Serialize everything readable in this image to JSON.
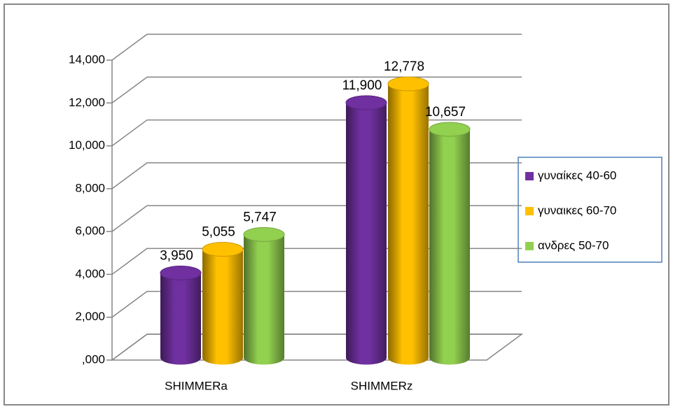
{
  "chart_data": {
    "type": "bar3d",
    "categories": [
      "SHIMMERa",
      "SHIMMERz"
    ],
    "series": [
      {
        "name": "γυναίκες 40-60",
        "color": "#7030a0",
        "values": [
          3.95,
          11.9
        ],
        "value_labels": [
          "3,950",
          "11,900"
        ]
      },
      {
        "name": "γυναικες 60-70",
        "color": "#ffc000",
        "values": [
          5.055,
          12.778
        ],
        "value_labels": [
          "5,055",
          "12,778"
        ]
      },
      {
        "name": "ανδρες 50-70",
        "color": "#92d050",
        "values": [
          5.747,
          10.657
        ],
        "value_labels": [
          "5,747",
          "10,657"
        ]
      }
    ],
    "ylim": [
      0,
      14
    ],
    "yticks": [
      {
        "value": 0,
        "label": ",000"
      },
      {
        "value": 2,
        "label": "2,000"
      },
      {
        "value": 4,
        "label": "4,000"
      },
      {
        "value": 6,
        "label": "6,000"
      },
      {
        "value": 8,
        "label": "8,000"
      },
      {
        "value": 10,
        "label": "10,000"
      },
      {
        "value": 12,
        "label": "12,000"
      },
      {
        "value": 14,
        "label": "14,000"
      }
    ],
    "grid": true,
    "legend": "right"
  }
}
